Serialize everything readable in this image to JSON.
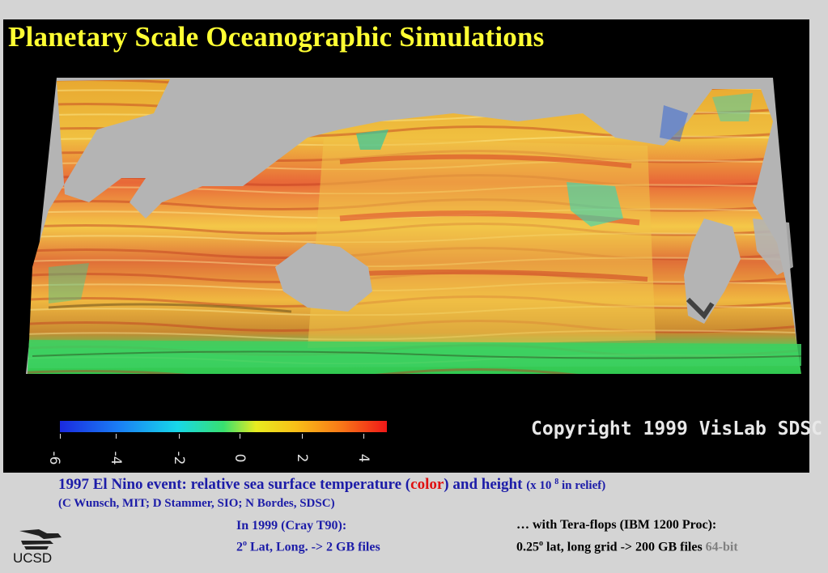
{
  "slide": {
    "title": "Planetary Scale Oceanographic Simulations",
    "copyright": "Copyright 1999 VisLab SDSC",
    "colorbar": {
      "ticks": [
        "-6",
        "-4",
        "-2",
        "0",
        "2",
        "4"
      ],
      "colors": [
        "#1a2ae0",
        "#18d8e8",
        "#38e070",
        "#e8ec20",
        "#f87818",
        "#f01818"
      ]
    },
    "caption": {
      "line1_a": "1997 El Nino event:   relative sea  surface temperature (",
      "line1_color": "color",
      "line1_b": ")  and height  ",
      "line1_c": "(x 10 ",
      "line1_sup": "8",
      "line1_d": " in relief)",
      "line2": "(C Wunsch, MIT; D Stammer, SIO;  N Bordes, SDSC)",
      "left1": "In 1999 (Cray T90):",
      "left2_a": "2",
      "left2_sup": "o",
      "left2_b": " Lat, Long. ->  2 GB files",
      "right1": "…  with Tera-flops (IBM 1200 Proc):",
      "right2_a": "0.25",
      "right2_sup": "o",
      "right2_b": " lat, long  grid  ->  200 GB files  ",
      "right2_c": "64-bit"
    },
    "logo_text": "UCSD"
  }
}
